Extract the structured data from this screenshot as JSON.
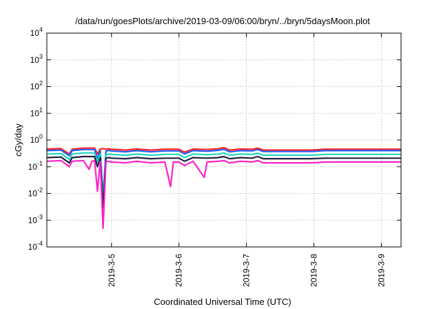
{
  "chart_data": {
    "type": "line",
    "title": "/data/run/goesPlots/archive/2019-03-09/06:00/bryn/../bryn/5daysMoon.plot",
    "xlabel": "Coordinated Universal Time (UTC)",
    "ylabel": "cGy/day",
    "y_scale": "log",
    "ylim": [
      0.0001,
      10000
    ],
    "xlim": [
      "2019-03-04 01:00",
      "2019-03-09 07:00"
    ],
    "grid": true,
    "legend": "none",
    "y_ticks": [
      {
        "base": "10",
        "exp": "-4"
      },
      {
        "base": "10",
        "exp": "-3"
      },
      {
        "base": "10",
        "exp": "-2"
      },
      {
        "base": "10",
        "exp": "-1"
      },
      {
        "base": "10",
        "exp": "0"
      },
      {
        "base": "10",
        "exp": "1"
      },
      {
        "base": "10",
        "exp": "2"
      },
      {
        "base": "10",
        "exp": "3"
      },
      {
        "base": "10",
        "exp": "4"
      }
    ],
    "x_ticks": [
      "2019-3-5",
      "2019-3-6",
      "2019-3-7",
      "2019-3-8",
      "2019-3-9"
    ],
    "x_tick_dates": [
      "2019-03-05 00:00",
      "2019-03-06 00:00",
      "2019-03-07 00:00",
      "2019-03-08 00:00",
      "2019-03-09 00:00"
    ],
    "series": [
      {
        "color": "#ff2020",
        "x": [
          "2019-03-04 01:00",
          "2019-03-04 06:00",
          "2019-03-04 09:00",
          "2019-03-04 10:00",
          "2019-03-04 14:00",
          "2019-03-04 18:00",
          "2019-03-04 19:00",
          "2019-03-04 20:00",
          "2019-03-04 21:00",
          "2019-03-04 22:00",
          "2019-03-04 23:00",
          "2019-03-05 00:00",
          "2019-03-05 05:00",
          "2019-03-05 09:00",
          "2019-03-05 14:00",
          "2019-03-05 19:00",
          "2019-03-06 00:00",
          "2019-03-06 02:00",
          "2019-03-06 05:00",
          "2019-03-06 10:00",
          "2019-03-06 14:00",
          "2019-03-06 16:00",
          "2019-03-06 18:00",
          "2019-03-06 22:00",
          "2019-03-07 02:00",
          "2019-03-07 04:00",
          "2019-03-07 06:00",
          "2019-03-07 18:00",
          "2019-03-07 23:00",
          "2019-03-08 04:00",
          "2019-03-09 07:00"
        ],
        "y": [
          0.46,
          0.48,
          0.3,
          0.45,
          0.5,
          0.5,
          0.3,
          0.46,
          0.48,
          0.45,
          0.47,
          0.45,
          0.42,
          0.46,
          0.42,
          0.45,
          0.45,
          0.35,
          0.46,
          0.44,
          0.47,
          0.52,
          0.42,
          0.46,
          0.45,
          0.5,
          0.42,
          0.42,
          0.42,
          0.45,
          0.45
        ]
      },
      {
        "color": "#2060ff",
        "x": [
          "2019-03-04 01:00",
          "2019-03-04 06:00",
          "2019-03-04 09:00",
          "2019-03-04 10:00",
          "2019-03-04 14:00",
          "2019-03-04 18:00",
          "2019-03-04 19:00",
          "2019-03-04 20:00",
          "2019-03-04 21:00",
          "2019-03-04 22:00",
          "2019-03-04 23:00",
          "2019-03-05 00:00",
          "2019-03-05 05:00",
          "2019-03-05 09:00",
          "2019-03-05 14:00",
          "2019-03-05 19:00",
          "2019-03-06 00:00",
          "2019-03-06 02:00",
          "2019-03-06 05:00",
          "2019-03-06 10:00",
          "2019-03-06 14:00",
          "2019-03-06 16:00",
          "2019-03-06 18:00",
          "2019-03-06 22:00",
          "2019-03-07 02:00",
          "2019-03-07 04:00",
          "2019-03-07 06:00",
          "2019-03-07 18:00",
          "2019-03-07 23:00",
          "2019-03-08 04:00",
          "2019-03-09 07:00"
        ],
        "y": [
          0.4,
          0.42,
          0.26,
          0.4,
          0.44,
          0.44,
          0.2,
          0.4,
          0.008,
          0.38,
          0.41,
          0.39,
          0.36,
          0.4,
          0.36,
          0.39,
          0.39,
          0.3,
          0.4,
          0.38,
          0.41,
          0.45,
          0.36,
          0.4,
          0.39,
          0.44,
          0.37,
          0.37,
          0.37,
          0.4,
          0.4
        ]
      },
      {
        "color": "#20d8c0",
        "x": [
          "2019-03-04 01:00",
          "2019-03-04 06:00",
          "2019-03-04 09:00",
          "2019-03-04 10:00",
          "2019-03-04 14:00",
          "2019-03-04 18:00",
          "2019-03-04 19:00",
          "2019-03-04 20:00",
          "2019-03-04 21:00",
          "2019-03-04 22:00",
          "2019-03-04 23:00",
          "2019-03-05 00:00",
          "2019-03-05 05:00",
          "2019-03-05 09:00",
          "2019-03-05 14:00",
          "2019-03-05 19:00",
          "2019-03-06 00:00",
          "2019-03-06 02:00",
          "2019-03-06 05:00",
          "2019-03-06 10:00",
          "2019-03-06 14:00",
          "2019-03-06 16:00",
          "2019-03-06 18:00",
          "2019-03-06 22:00",
          "2019-03-07 02:00",
          "2019-03-07 04:00",
          "2019-03-07 06:00",
          "2019-03-07 18:00",
          "2019-03-07 23:00",
          "2019-03-08 04:00",
          "2019-03-09 07:00"
        ],
        "y": [
          0.3,
          0.31,
          0.19,
          0.3,
          0.33,
          0.33,
          0.15,
          0.3,
          0.006,
          0.28,
          0.3,
          0.29,
          0.27,
          0.3,
          0.27,
          0.29,
          0.29,
          0.22,
          0.3,
          0.28,
          0.3,
          0.33,
          0.27,
          0.3,
          0.29,
          0.32,
          0.27,
          0.27,
          0.27,
          0.29,
          0.29
        ]
      },
      {
        "color": "#202040",
        "x": [
          "2019-03-04 01:00",
          "2019-03-04 06:00",
          "2019-03-04 09:00",
          "2019-03-04 10:00",
          "2019-03-04 14:00",
          "2019-03-04 18:00",
          "2019-03-04 19:00",
          "2019-03-04 20:00",
          "2019-03-04 21:00",
          "2019-03-04 22:00",
          "2019-03-04 23:00",
          "2019-03-05 00:00",
          "2019-03-05 05:00",
          "2019-03-05 09:00",
          "2019-03-05 14:00",
          "2019-03-05 19:00",
          "2019-03-06 00:00",
          "2019-03-06 02:00",
          "2019-03-06 05:00",
          "2019-03-06 10:00",
          "2019-03-06 14:00",
          "2019-03-06 16:00",
          "2019-03-06 18:00",
          "2019-03-06 22:00",
          "2019-03-07 02:00",
          "2019-03-07 04:00",
          "2019-03-07 06:00",
          "2019-03-07 18:00",
          "2019-03-07 23:00",
          "2019-03-08 04:00",
          "2019-03-09 07:00"
        ],
        "y": [
          0.22,
          0.23,
          0.14,
          0.22,
          0.24,
          0.24,
          0.1,
          0.22,
          0.003,
          0.21,
          0.22,
          0.21,
          0.2,
          0.22,
          0.2,
          0.21,
          0.21,
          0.16,
          0.22,
          0.21,
          0.22,
          0.24,
          0.2,
          0.22,
          0.21,
          0.24,
          0.2,
          0.2,
          0.2,
          0.21,
          0.21
        ]
      },
      {
        "color": "#ff20c8",
        "x": [
          "2019-03-04 01:00",
          "2019-03-04 06:00",
          "2019-03-04 09:00",
          "2019-03-04 10:00",
          "2019-03-04 14:00",
          "2019-03-04 16:00",
          "2019-03-04 17:00",
          "2019-03-04 18:00",
          "2019-03-04 19:00",
          "2019-03-04 20:00",
          "2019-03-04 21:00",
          "2019-03-04 22:00",
          "2019-03-04 23:00",
          "2019-03-05 00:00",
          "2019-03-05 05:00",
          "2019-03-05 09:00",
          "2019-03-05 14:00",
          "2019-03-05 19:00",
          "2019-03-05 21:00",
          "2019-03-05 22:00",
          "2019-03-06 00:00",
          "2019-03-06 02:00",
          "2019-03-06 05:00",
          "2019-03-06 09:00",
          "2019-03-06 10:00",
          "2019-03-06 14:00",
          "2019-03-06 16:00",
          "2019-03-06 18:00",
          "2019-03-06 22:00",
          "2019-03-07 02:00",
          "2019-03-07 04:00",
          "2019-03-07 06:00",
          "2019-03-07 18:00",
          "2019-03-07 23:00",
          "2019-03-08 04:00",
          "2019-03-09 07:00"
        ],
        "y": [
          0.16,
          0.17,
          0.1,
          0.16,
          0.17,
          0.08,
          0.16,
          0.17,
          0.012,
          0.16,
          0.0005,
          0.15,
          0.16,
          0.15,
          0.14,
          0.16,
          0.14,
          0.15,
          0.018,
          0.15,
          0.15,
          0.11,
          0.16,
          0.04,
          0.15,
          0.16,
          0.17,
          0.14,
          0.16,
          0.15,
          0.17,
          0.14,
          0.14,
          0.14,
          0.15,
          0.15
        ]
      }
    ]
  }
}
